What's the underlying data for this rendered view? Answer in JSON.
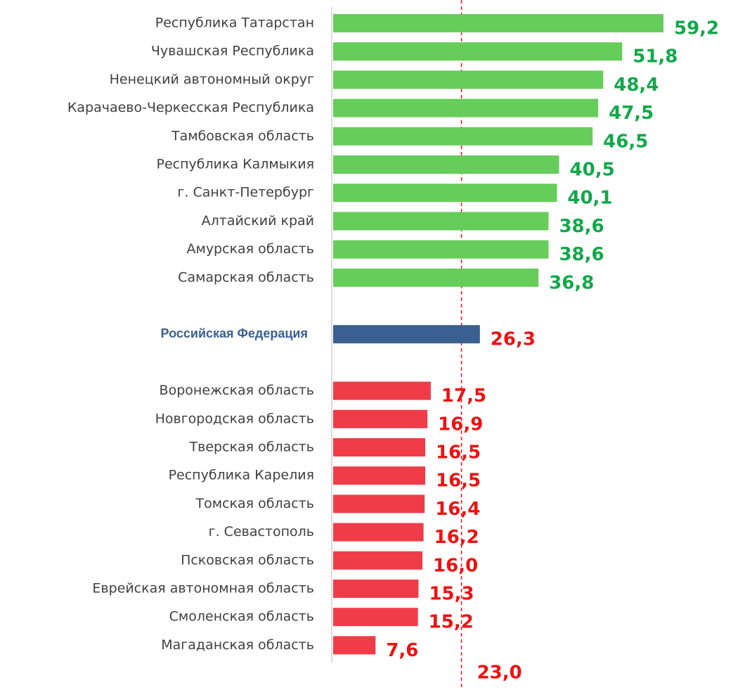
{
  "chart_data": {
    "type": "bar",
    "orientation": "horizontal",
    "categories": [
      "Республика Татарстан",
      "Чувашская Республика",
      "Ненецкий автономный округ",
      "Карачаево-Черкесская Республика",
      "Тамбовская область",
      "Республика Калмыкия",
      "г. Санкт-Петербург",
      "Алтайский край",
      "Амурская область",
      "Самарская область",
      null,
      "Российская Федерация",
      null,
      "Воронежская область",
      "Новгородская область",
      "Тверская область",
      "Республика Карелия",
      "Томская область",
      "г. Севастополь",
      "Псковская область",
      "Еврейская автономная область",
      "Смоленская область",
      "Магаданская область"
    ],
    "values": [
      59.2,
      51.8,
      48.4,
      47.5,
      46.5,
      40.5,
      40.1,
      38.6,
      38.6,
      36.8,
      null,
      26.3,
      null,
      17.5,
      16.9,
      16.5,
      16.5,
      16.4,
      16.2,
      16.0,
      15.3,
      15.2,
      7.6
    ],
    "value_labels": [
      "59,2",
      "51,8",
      "48,4",
      "47,5",
      "46,5",
      "40,5",
      "40,1",
      "38,6",
      "38,6",
      "36,8",
      null,
      "26,3",
      null,
      "17,5",
      "16,9",
      "16,5",
      "16,5",
      "16,4",
      "16,2",
      "16,0",
      "15,3",
      "15,2",
      "7,6"
    ],
    "colors": [
      "#66cc5a",
      "#66cc5a",
      "#66cc5a",
      "#66cc5a",
      "#66cc5a",
      "#66cc5a",
      "#66cc5a",
      "#66cc5a",
      "#66cc5a",
      "#66cc5a",
      null,
      "#3a5f91",
      null,
      "#f03c48",
      "#f03c48",
      "#f03c48",
      "#f03c48",
      "#f03c48",
      "#f03c48",
      "#f03c48",
      "#f03c48",
      "#f03c48",
      "#f03c48"
    ],
    "value_label_colors": [
      "#12a84a",
      "#12a84a",
      "#12a84a",
      "#12a84a",
      "#12a84a",
      "#12a84a",
      "#12a84a",
      "#12a84a",
      "#12a84a",
      "#12a84a",
      null,
      "#ee1111",
      null,
      "#ee1111",
      "#ee1111",
      "#ee1111",
      "#ee1111",
      "#ee1111",
      "#ee1111",
      "#ee1111",
      "#ee1111",
      "#ee1111",
      "#ee1111"
    ],
    "reference_line": {
      "value": 23.0,
      "label": "23,0",
      "color": "#ee1111"
    },
    "xlim": [
      0,
      59.2
    ]
  }
}
